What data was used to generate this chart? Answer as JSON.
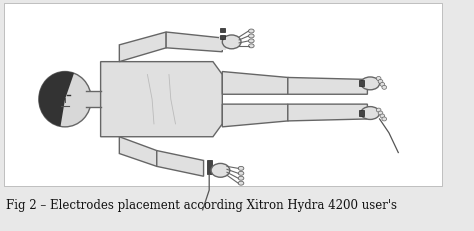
{
  "caption": "Fig 2 – Electrodes placement according Xitron Hydra 4200 user's",
  "bg_color": "#e8e8e8",
  "body_fill": "#e0e0e0",
  "body_edge": "#666666",
  "dark_fill": "#333333",
  "electrode_fill": "#444444",
  "wire_color": "#555555",
  "caption_fontsize": 8.5,
  "caption_color": "#111111",
  "fig_width": 4.74,
  "fig_height": 2.32,
  "dpi": 100
}
